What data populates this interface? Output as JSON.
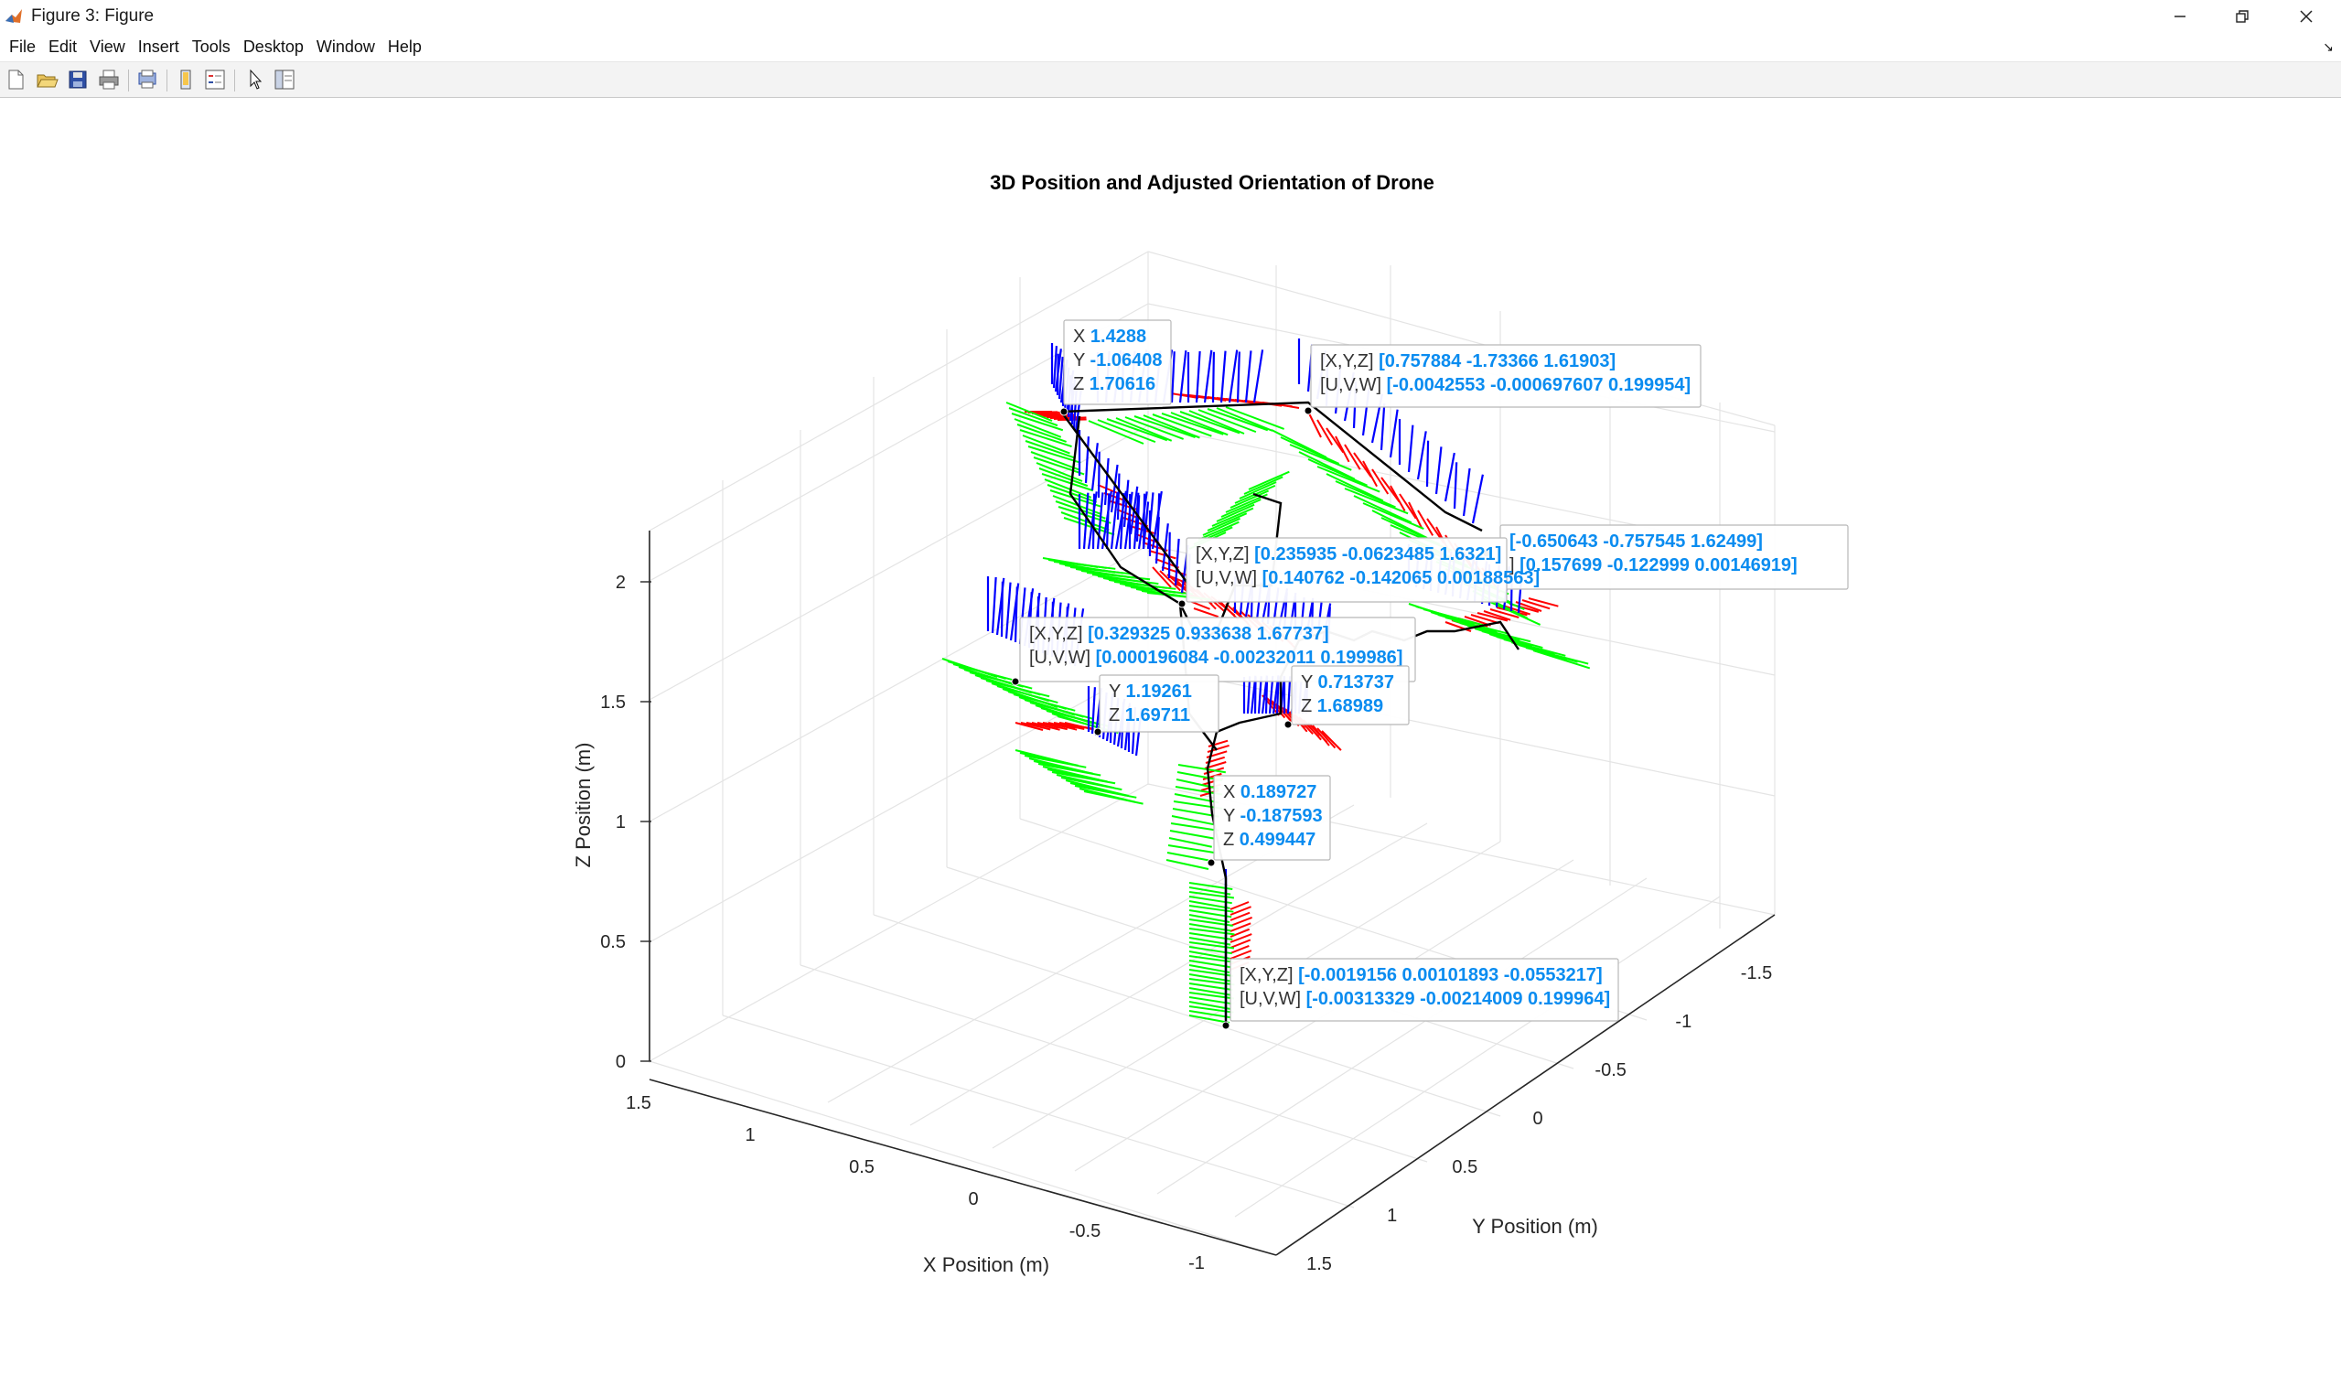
{
  "window": {
    "title": "Figure 3: Figure",
    "minimize_icon": "minimize-icon",
    "restore_icon": "restore-icon",
    "close_icon": "close-icon"
  },
  "menubar": {
    "items": [
      "File",
      "Edit",
      "View",
      "Insert",
      "Tools",
      "Desktop",
      "Window",
      "Help"
    ],
    "dock_icon": "dock-arrow-icon"
  },
  "toolbar": {
    "buttons": [
      "new-figure-icon",
      "open-file-icon",
      "save-icon",
      "print-icon",
      "print-preview-icon",
      "link-plot-icon",
      "insert-legend-icon",
      "edit-plot-arrow-icon",
      "property-inspector-icon"
    ]
  },
  "chart_data": {
    "type": "3d-quiver",
    "title": "3D Position and Adjusted Orientation of Drone",
    "xlabel": "X Position (m)",
    "ylabel": "Y Position (m)",
    "zlabel": "Z Position (m)",
    "x_ticks": [
      "1.5",
      "1",
      "0.5",
      "0",
      "-0.5",
      "-1"
    ],
    "y_ticks": [
      "-1.5",
      "-1",
      "-0.5",
      "0",
      "0.5",
      "1",
      "1.5"
    ],
    "z_ticks": [
      "0",
      "0.5",
      "1",
      "1.5",
      "2"
    ],
    "xlim": [
      -1.2,
      1.6
    ],
    "ylim": [
      -1.8,
      1.6
    ],
    "zlim": [
      0,
      2.2
    ],
    "grid": true,
    "series_colors": {
      "x_axis_arrows": "#ff0000",
      "y_axis_arrows": "#00ff00",
      "z_axis_arrows": "#0000ff",
      "trajectory": "#000000"
    },
    "datatips": [
      {
        "lines": [
          {
            "label": "X",
            "value": "1.4288"
          },
          {
            "label": "Y",
            "value": "-1.06408"
          },
          {
            "label": "Z",
            "value": "1.70616"
          }
        ]
      },
      {
        "lines": [
          {
            "label": "[X,Y,Z]",
            "value": "[0.757884 -1.73366 1.61903]"
          },
          {
            "label": "[U,V,W]",
            "value": "[-0.0042553 -0.000697607 0.199954]"
          }
        ]
      },
      {
        "lines": [
          {
            "label": "",
            "value": "[-0.650643 -0.757545 1.62499]"
          },
          {
            "label": "]",
            "value": "[0.157699 -0.122999 0.00146919]"
          }
        ]
      },
      {
        "lines": [
          {
            "label": "[X,Y,Z]",
            "value": "[0.235935 -0.0623485 1.6321]"
          },
          {
            "label": "[U,V,W]",
            "value": "[0.140762 -0.142065 0.00188563]"
          }
        ]
      },
      {
        "lines": [
          {
            "label": "[X,Y,Z]",
            "value": "[0.329325 0.933638 1.67737]"
          },
          {
            "label": "[U,V,W]",
            "value": "[0.000196084 -0.00232011 0.199986]"
          }
        ]
      },
      {
        "lines": [
          {
            "label": "Y",
            "value": "1.19261"
          },
          {
            "label": "Z",
            "value": "1.69711"
          }
        ]
      },
      {
        "lines": [
          {
            "label": "Y",
            "value": "0.713737"
          },
          {
            "label": "Z",
            "value": "1.68989"
          }
        ]
      },
      {
        "lines": [
          {
            "label": "X",
            "value": "0.189727"
          },
          {
            "label": "Y",
            "value": "-0.187593"
          },
          {
            "label": "Z",
            "value": "0.499447"
          }
        ]
      },
      {
        "lines": [
          {
            "label": "[X,Y,Z]",
            "value": "[-0.0019156 0.00101893 -0.0553217]"
          },
          {
            "label": "[U,V,W]",
            "value": "[-0.00313329 -0.00214009 0.199964]"
          }
        ]
      }
    ]
  }
}
